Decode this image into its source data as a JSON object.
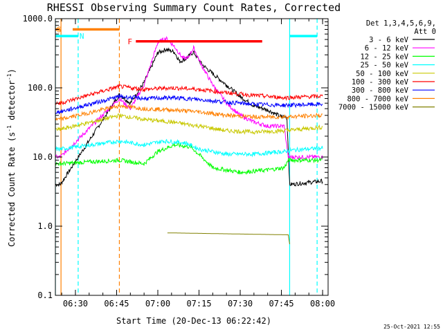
{
  "chart_data": {
    "type": "line",
    "title": "RHESSI Observing Summary Count Rates, Corrected",
    "xlabel": "Start Time (20-Dec-13 06:22:42)",
    "ylabel_main": "Corrected Count Rate (s",
    "ylabel_sup1": "-1",
    "ylabel_mid": " detector",
    "ylabel_sup2": "-1",
    "ylabel_end": ")",
    "y_scale": "log",
    "ylim": [
      0.1,
      1000
    ],
    "xlim": [
      "06:22:42",
      "08:02:00"
    ],
    "x_ticks": [
      "06:30",
      "06:45",
      "07:00",
      "07:15",
      "07:30",
      "07:45",
      "08:00"
    ],
    "y_ticks": [
      "0.1",
      "1.0",
      "10.0",
      "100.0",
      "1000.0"
    ],
    "y_tick_values": [
      0.1,
      1,
      10,
      100,
      1000
    ],
    "legend_placement": "top-right",
    "legend_header": [
      "Det 1,3,4,5,6,9,",
      "Att 0"
    ],
    "stamp": "25-Oct-2021 12:55",
    "series": [
      {
        "name": "3 - 6 keV",
        "color": "#000000",
        "points": [
          [
            "06:22:42",
            4
          ],
          [
            "06:24:30",
            4
          ],
          [
            "06:46:00",
            80
          ],
          [
            "06:50:00",
            60
          ],
          [
            "06:55:00",
            120
          ],
          [
            "07:00:00",
            320
          ],
          [
            "07:03:00",
            360
          ],
          [
            "07:06:00",
            330
          ],
          [
            "07:08:00",
            240
          ],
          [
            "07:10:00",
            260
          ],
          [
            "07:13:00",
            330
          ],
          [
            "07:16:00",
            220
          ],
          [
            "07:20:00",
            160
          ],
          [
            "07:25:00",
            110
          ],
          [
            "07:30:00",
            75
          ],
          [
            "07:35:00",
            55
          ],
          [
            "07:40:00",
            48
          ],
          [
            "07:45:00",
            38
          ],
          [
            "07:47:00",
            38
          ],
          [
            "07:48:00",
            4
          ],
          [
            "08:00:00",
            4.5
          ]
        ]
      },
      {
        "name": "6 - 12 keV",
        "color": "#ff00ff",
        "points": [
          [
            "06:22:42",
            10
          ],
          [
            "06:24:30",
            10
          ],
          [
            "06:46:00",
            70
          ],
          [
            "06:50:00",
            50
          ],
          [
            "06:55:00",
            110
          ],
          [
            "07:00:00",
            450
          ],
          [
            "07:03:00",
            520
          ],
          [
            "07:06:00",
            400
          ],
          [
            "07:09:00",
            270
          ],
          [
            "07:11:00",
            270
          ],
          [
            "07:13:00",
            380
          ],
          [
            "07:16:00",
            210
          ],
          [
            "07:20:00",
            110
          ],
          [
            "07:25:00",
            60
          ],
          [
            "07:30:00",
            40
          ],
          [
            "07:35:00",
            32
          ],
          [
            "07:40:00",
            28
          ],
          [
            "07:46:00",
            28
          ],
          [
            "07:47:30",
            10
          ],
          [
            "08:00:00",
            10
          ]
        ]
      },
      {
        "name": "12 - 25 keV",
        "color": "#00ff00",
        "points": [
          [
            "06:22:42",
            8
          ],
          [
            "06:24:30",
            8
          ],
          [
            "06:46:00",
            9
          ],
          [
            "06:55:00",
            8
          ],
          [
            "07:00:00",
            12
          ],
          [
            "07:06:00",
            15
          ],
          [
            "07:12:00",
            14
          ],
          [
            "07:16:00",
            10
          ],
          [
            "07:20:00",
            7
          ],
          [
            "07:30:00",
            6
          ],
          [
            "07:40:00",
            6.5
          ],
          [
            "07:46:00",
            7
          ],
          [
            "07:47:30",
            9
          ],
          [
            "08:00:00",
            9
          ]
        ]
      },
      {
        "name": "25 - 50 keV",
        "color": "#00ffff",
        "points": [
          [
            "06:22:42",
            13
          ],
          [
            "06:24:30",
            13
          ],
          [
            "06:46:00",
            17
          ],
          [
            "06:55:00",
            15
          ],
          [
            "07:02:00",
            17
          ],
          [
            "07:10:00",
            16
          ],
          [
            "07:15:00",
            13
          ],
          [
            "07:25:00",
            11
          ],
          [
            "07:35:00",
            11
          ],
          [
            "07:46:00",
            12
          ],
          [
            "07:48:00",
            12.5
          ],
          [
            "08:00:00",
            13.5
          ]
        ]
      },
      {
        "name": "50 - 100 keV",
        "color": "#c8c800",
        "points": [
          [
            "06:22:42",
            25
          ],
          [
            "06:24:30",
            25
          ],
          [
            "06:46:00",
            40
          ],
          [
            "06:55:00",
            35
          ],
          [
            "07:05:00",
            32
          ],
          [
            "07:15:00",
            28
          ],
          [
            "07:25:00",
            24
          ],
          [
            "07:35:00",
            23
          ],
          [
            "07:46:00",
            24
          ],
          [
            "08:00:00",
            27
          ]
        ]
      },
      {
        "name": "100 - 300 keV",
        "color": "#ff0000",
        "points": [
          [
            "06:22:42",
            60
          ],
          [
            "06:24:30",
            60
          ],
          [
            "06:46:00",
            105
          ],
          [
            "06:55:00",
            95
          ],
          [
            "07:05:00",
            100
          ],
          [
            "07:15:00",
            95
          ],
          [
            "07:25:00",
            85
          ],
          [
            "07:35:00",
            78
          ],
          [
            "07:46:00",
            72
          ],
          [
            "08:00:00",
            76
          ]
        ]
      },
      {
        "name": "300 - 800 keV",
        "color": "#0000ff",
        "points": [
          [
            "06:22:42",
            45
          ],
          [
            "06:24:30",
            45
          ],
          [
            "06:46:00",
            75
          ],
          [
            "06:55:00",
            70
          ],
          [
            "07:05:00",
            72
          ],
          [
            "07:15:00",
            68
          ],
          [
            "07:25:00",
            62
          ],
          [
            "07:35:00",
            58
          ],
          [
            "07:46:00",
            56
          ],
          [
            "08:00:00",
            58
          ]
        ]
      },
      {
        "name": "800 - 7000 keV",
        "color": "#ff8000",
        "points": [
          [
            "06:22:42",
            35
          ],
          [
            "06:24:30",
            35
          ],
          [
            "06:46:00",
            55
          ],
          [
            "06:55:00",
            50
          ],
          [
            "07:05:00",
            48
          ],
          [
            "07:15:00",
            45
          ],
          [
            "07:25:00",
            40
          ],
          [
            "07:35:00",
            38
          ],
          [
            "07:46:00",
            38
          ],
          [
            "08:00:00",
            40
          ]
        ]
      },
      {
        "name": "7000 - 15000 keV",
        "color": "#808000",
        "points": [
          [
            "07:03:30",
            0.8
          ],
          [
            "07:04:30",
            0.8
          ],
          [
            "07:47:30",
            0.75
          ],
          [
            "07:48:00",
            0.55
          ]
        ]
      }
    ],
    "flag_bars": [
      {
        "label": "S",
        "color": "#ff8000",
        "start": "06:22:42",
        "end": "06:24:30",
        "y": 700,
        "label_at": "06:22:42"
      },
      {
        "label": "",
        "color": "#ff8000",
        "start": "06:29:00",
        "end": "06:46:00",
        "y": 700
      },
      {
        "label": "N",
        "color": "#00ffff",
        "start": "06:22:42",
        "end": "06:31:00",
        "y": 560,
        "label_at": "06:31:00"
      },
      {
        "label": "",
        "color": "#00ffff",
        "start": "07:48:00",
        "end": "07:58:00",
        "y": 560
      },
      {
        "label": "F",
        "color": "#ff0000",
        "start": "06:52:00",
        "end": "07:38:00",
        "y": 470,
        "label_at": "06:48:30"
      }
    ],
    "vlines": [
      {
        "time": "06:24:45",
        "color": "#ff8000",
        "dashed": false
      },
      {
        "time": "06:31:00",
        "color": "#00ffff",
        "dashed": true
      },
      {
        "time": "06:46:00",
        "color": "#ff8000",
        "dashed": true
      },
      {
        "time": "06:22:42",
        "color": "#00ffff",
        "dashed": false
      },
      {
        "time": "07:48:00",
        "color": "#00ffff",
        "dashed": false
      },
      {
        "time": "07:58:00",
        "color": "#00ffff",
        "dashed": true
      }
    ]
  }
}
